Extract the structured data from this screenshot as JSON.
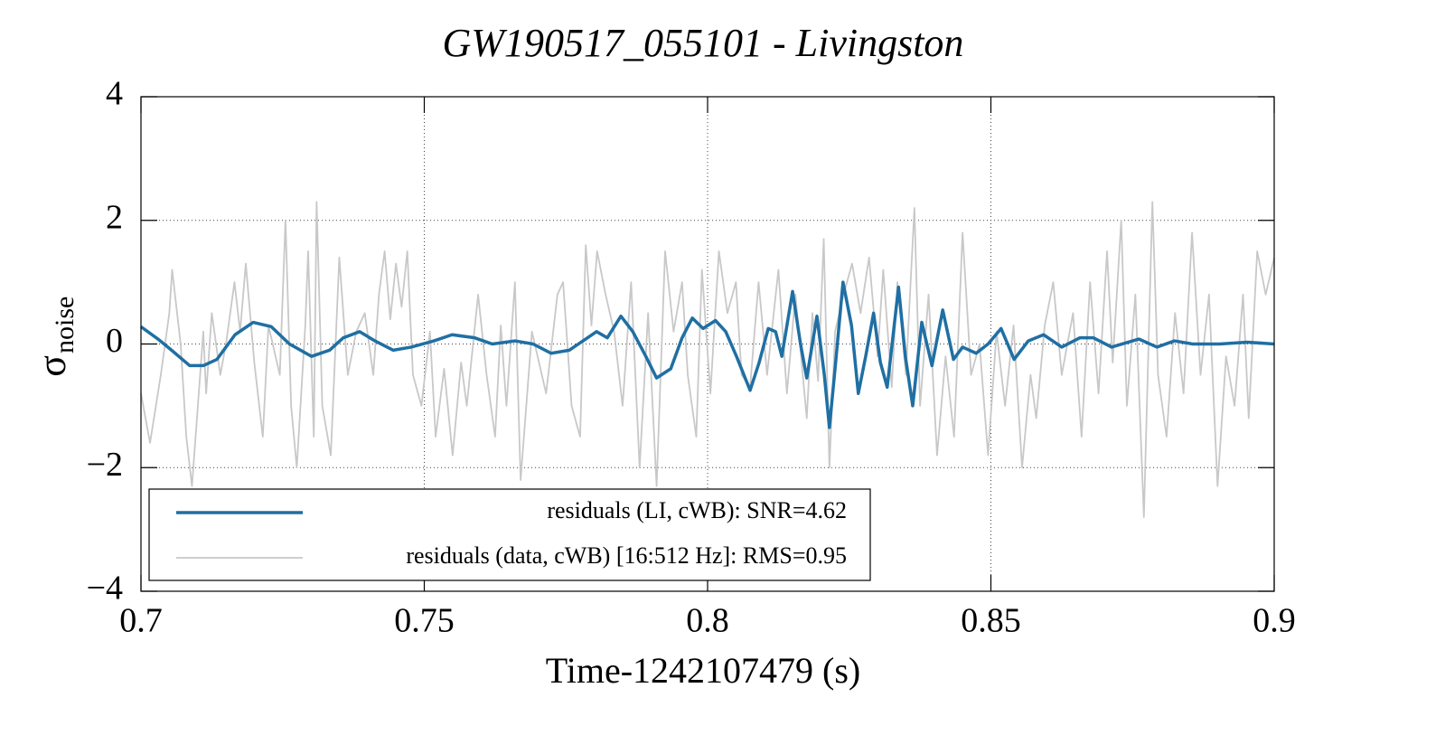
{
  "chart_data": {
    "type": "line",
    "title": "GW190517_055101 - Livingston",
    "xlabel": "Time-1242107479 (s)",
    "ylabel": {
      "symbol": "σ",
      "subscript": "noise"
    },
    "xlim": [
      0.7,
      0.9
    ],
    "xticks": [
      0.7,
      0.75,
      0.8,
      0.85,
      0.9
    ],
    "ylim": [
      -4,
      4
    ],
    "yticks": [
      {
        "value": -4,
        "label": "−4"
      },
      {
        "value": -2,
        "label": "−2"
      },
      0,
      2,
      4
    ],
    "grid": true,
    "legend": "lower left",
    "series": [
      {
        "name": "residuals (LI, cWB): SNR=4.62",
        "color": "#1f6fa3",
        "x": [
          0.7,
          0.703,
          0.7054,
          0.7086,
          0.711,
          0.7134,
          0.7166,
          0.7198,
          0.723,
          0.7262,
          0.7301,
          0.7333,
          0.7357,
          0.7386,
          0.7413,
          0.7445,
          0.7477,
          0.7517,
          0.7549,
          0.7589,
          0.762,
          0.766,
          0.7692,
          0.7724,
          0.7756,
          0.7788,
          0.7804,
          0.7823,
          0.7847,
          0.7868,
          0.7891,
          0.791,
          0.7935,
          0.7955,
          0.7973,
          0.7992,
          0.8014,
          0.8032,
          0.8051,
          0.8075,
          0.8091,
          0.8107,
          0.812,
          0.8131,
          0.815,
          0.8164,
          0.8175,
          0.8193,
          0.8206,
          0.8215,
          0.8226,
          0.8239,
          0.8254,
          0.8266,
          0.8279,
          0.8293,
          0.8305,
          0.8317,
          0.8337,
          0.8349,
          0.8362,
          0.8378,
          0.8396,
          0.8415,
          0.8434,
          0.845,
          0.8474,
          0.8495,
          0.8518,
          0.8541,
          0.8566,
          0.8593,
          0.8625,
          0.8657,
          0.8681,
          0.8713,
          0.8761,
          0.8793,
          0.8824,
          0.8856,
          0.8904,
          0.8952,
          0.9
        ],
        "values": [
          0.28,
          0.08,
          -0.1,
          -0.35,
          -0.35,
          -0.25,
          0.15,
          0.35,
          0.28,
          0.0,
          -0.2,
          -0.1,
          0.1,
          0.2,
          0.05,
          -0.1,
          -0.05,
          0.05,
          0.15,
          0.1,
          0.0,
          0.05,
          0.0,
          -0.15,
          -0.1,
          0.1,
          0.2,
          0.1,
          0.45,
          0.2,
          -0.2,
          -0.55,
          -0.4,
          0.1,
          0.42,
          0.25,
          0.38,
          0.2,
          -0.2,
          -0.75,
          -0.3,
          0.25,
          0.2,
          -0.2,
          0.85,
          0.0,
          -0.55,
          0.45,
          -0.5,
          -1.35,
          -0.3,
          1.0,
          0.3,
          -0.8,
          -0.2,
          0.5,
          -0.3,
          -0.7,
          0.92,
          -0.2,
          -1.0,
          0.35,
          -0.35,
          0.55,
          -0.25,
          -0.05,
          -0.15,
          0.0,
          0.25,
          -0.25,
          0.05,
          0.15,
          -0.05,
          0.1,
          0.1,
          -0.05,
          0.08,
          -0.05,
          0.05,
          0.0,
          0.0,
          0.03,
          0.0
        ]
      },
      {
        "name": "residuals (data, cWB) [16:512 Hz]: RMS=0.95",
        "color": "#c8c8c8",
        "x": [
          0.7,
          0.7016,
          0.7035,
          0.705,
          0.7055,
          0.707,
          0.708,
          0.709,
          0.711,
          0.7115,
          0.7125,
          0.714,
          0.715,
          0.7165,
          0.7175,
          0.7185,
          0.72,
          0.7215,
          0.7225,
          0.7245,
          0.7255,
          0.7265,
          0.7275,
          0.729,
          0.7295,
          0.7305,
          0.731,
          0.732,
          0.7335,
          0.735,
          0.7365,
          0.738,
          0.7395,
          0.741,
          0.742,
          0.743,
          0.744,
          0.745,
          0.746,
          0.747,
          0.748,
          0.7495,
          0.751,
          0.752,
          0.7535,
          0.755,
          0.7565,
          0.7575,
          0.7595,
          0.761,
          0.7625,
          0.7635,
          0.7645,
          0.766,
          0.767,
          0.769,
          0.7715,
          0.7735,
          0.7745,
          0.776,
          0.7775,
          0.7785,
          0.7795,
          0.7805,
          0.782,
          0.7835,
          0.785,
          0.7865,
          0.788,
          0.7895,
          0.791,
          0.7925,
          0.794,
          0.7955,
          0.7965,
          0.798,
          0.799,
          0.8005,
          0.802,
          0.8035,
          0.805,
          0.806,
          0.8075,
          0.809,
          0.8105,
          0.8125,
          0.814,
          0.8155,
          0.8175,
          0.8185,
          0.8195,
          0.8205,
          0.8215,
          0.8225,
          0.824,
          0.8255,
          0.827,
          0.8285,
          0.83,
          0.831,
          0.8325,
          0.8335,
          0.835,
          0.8365,
          0.8375,
          0.839,
          0.8405,
          0.842,
          0.8435,
          0.845,
          0.8465,
          0.848,
          0.8495,
          0.851,
          0.8525,
          0.854,
          0.8555,
          0.857,
          0.858,
          0.8595,
          0.861,
          0.8625,
          0.8645,
          0.866,
          0.8675,
          0.869,
          0.8705,
          0.8715,
          0.873,
          0.874,
          0.8755,
          0.877,
          0.8785,
          0.8795,
          0.881,
          0.8825,
          0.884,
          0.8855,
          0.887,
          0.8885,
          0.89,
          0.8915,
          0.893,
          0.8945,
          0.8955,
          0.897,
          0.8985,
          0.9
        ],
        "values": [
          -0.8,
          -1.6,
          -0.5,
          0.5,
          1.2,
          0.0,
          -1.5,
          -2.3,
          0.2,
          -0.8,
          0.5,
          -0.5,
          0.0,
          1.0,
          0.2,
          1.3,
          -0.3,
          -1.5,
          0.3,
          -0.5,
          2.0,
          -1.0,
          -2.0,
          0.3,
          1.5,
          -1.5,
          2.3,
          -1.0,
          -1.8,
          1.4,
          -0.5,
          0.2,
          0.5,
          -0.5,
          0.8,
          1.5,
          0.4,
          1.3,
          0.6,
          1.5,
          -0.5,
          -1.0,
          0.2,
          -1.5,
          -0.4,
          -1.8,
          -0.3,
          -1.0,
          0.8,
          -0.5,
          -1.5,
          0.3,
          -1.0,
          1.0,
          -2.2,
          0.2,
          -0.8,
          0.8,
          1.0,
          -1.0,
          -1.5,
          1.6,
          0.3,
          1.5,
          0.8,
          0.2,
          -1.0,
          1.0,
          -2.0,
          0.5,
          -2.3,
          1.5,
          0.2,
          1.0,
          -0.5,
          -1.5,
          1.2,
          -0.8,
          1.5,
          0.5,
          1.0,
          -0.5,
          -0.7,
          1.0,
          -0.5,
          1.2,
          -0.8,
          0.8,
          -1.2,
          0.5,
          -0.6,
          1.7,
          -2.0,
          0.2,
          0.8,
          1.3,
          0.5,
          1.4,
          -0.2,
          1.2,
          -0.7,
          1.0,
          -0.5,
          2.2,
          -1.0,
          0.8,
          -1.8,
          -0.2,
          -1.5,
          1.8,
          -0.5,
          0.0,
          -1.8,
          0.2,
          -1.0,
          0.3,
          -2.0,
          -0.5,
          -1.2,
          0.3,
          1.0,
          -0.5,
          0.5,
          -1.5,
          1.0,
          -0.8,
          1.5,
          -0.3,
          2.0,
          -1.0,
          0.8,
          -2.8,
          2.3,
          -0.5,
          -1.5,
          0.5,
          -0.8,
          1.8,
          -0.5,
          0.8,
          -2.3,
          -0.2,
          -1.0,
          0.8,
          -1.2,
          1.5,
          0.8,
          1.4
        ]
      }
    ]
  }
}
